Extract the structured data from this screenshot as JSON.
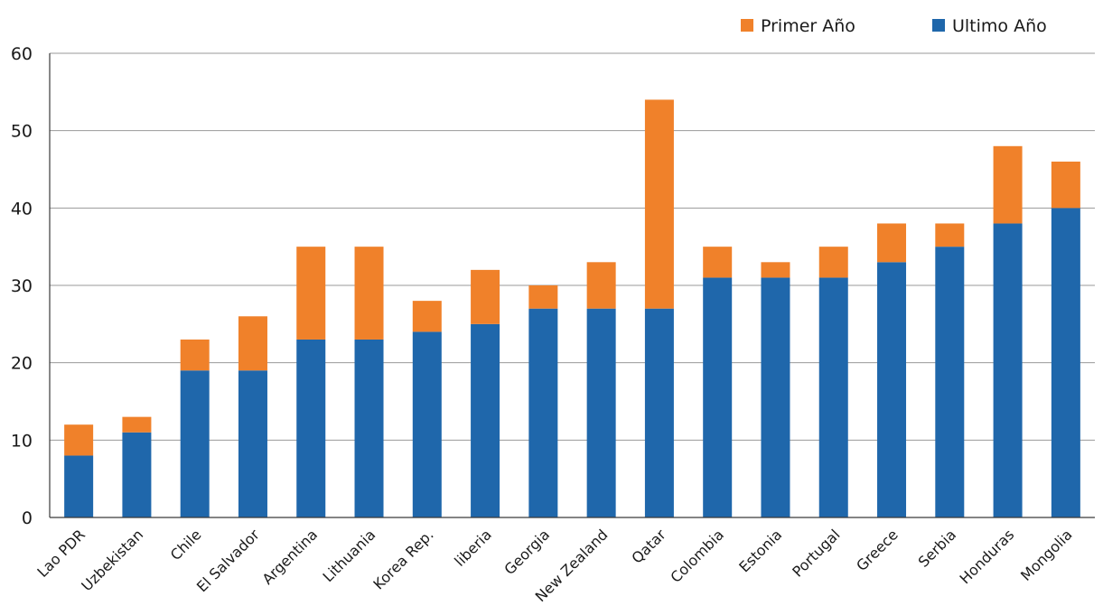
{
  "chart_data": {
    "type": "bar",
    "stacked": true,
    "categories": [
      "Lao PDR",
      "Uzbekistan",
      "Chile",
      "El Salvador",
      "Argentina",
      "Lithuania",
      "Korea Rep.",
      "liberia",
      "Georgia",
      "New Zealand",
      "Qatar",
      "Colombia",
      "Estonia",
      "Portugal",
      "Greece",
      "Serbia",
      "Honduras",
      "Mongolia"
    ],
    "series": [
      {
        "name": "Ultimo Año",
        "color": "#1f67ab",
        "values": [
          8,
          11,
          19,
          19,
          23,
          23,
          24,
          25,
          27,
          27,
          27,
          31,
          31,
          31,
          33,
          35,
          38,
          40
        ]
      },
      {
        "name": "Primer Año",
        "color": "#f0812a",
        "values": [
          4,
          2,
          4,
          7,
          12,
          12,
          4,
          7,
          3,
          6,
          27,
          4,
          2,
          4,
          5,
          3,
          10,
          6
        ]
      }
    ],
    "ylim": [
      0,
      60
    ],
    "yticks": [
      0,
      10,
      20,
      30,
      40,
      50,
      60
    ],
    "grid": true,
    "legend": {
      "position": "top-right",
      "order": [
        "Primer Año",
        "Ultimo Año"
      ]
    }
  }
}
